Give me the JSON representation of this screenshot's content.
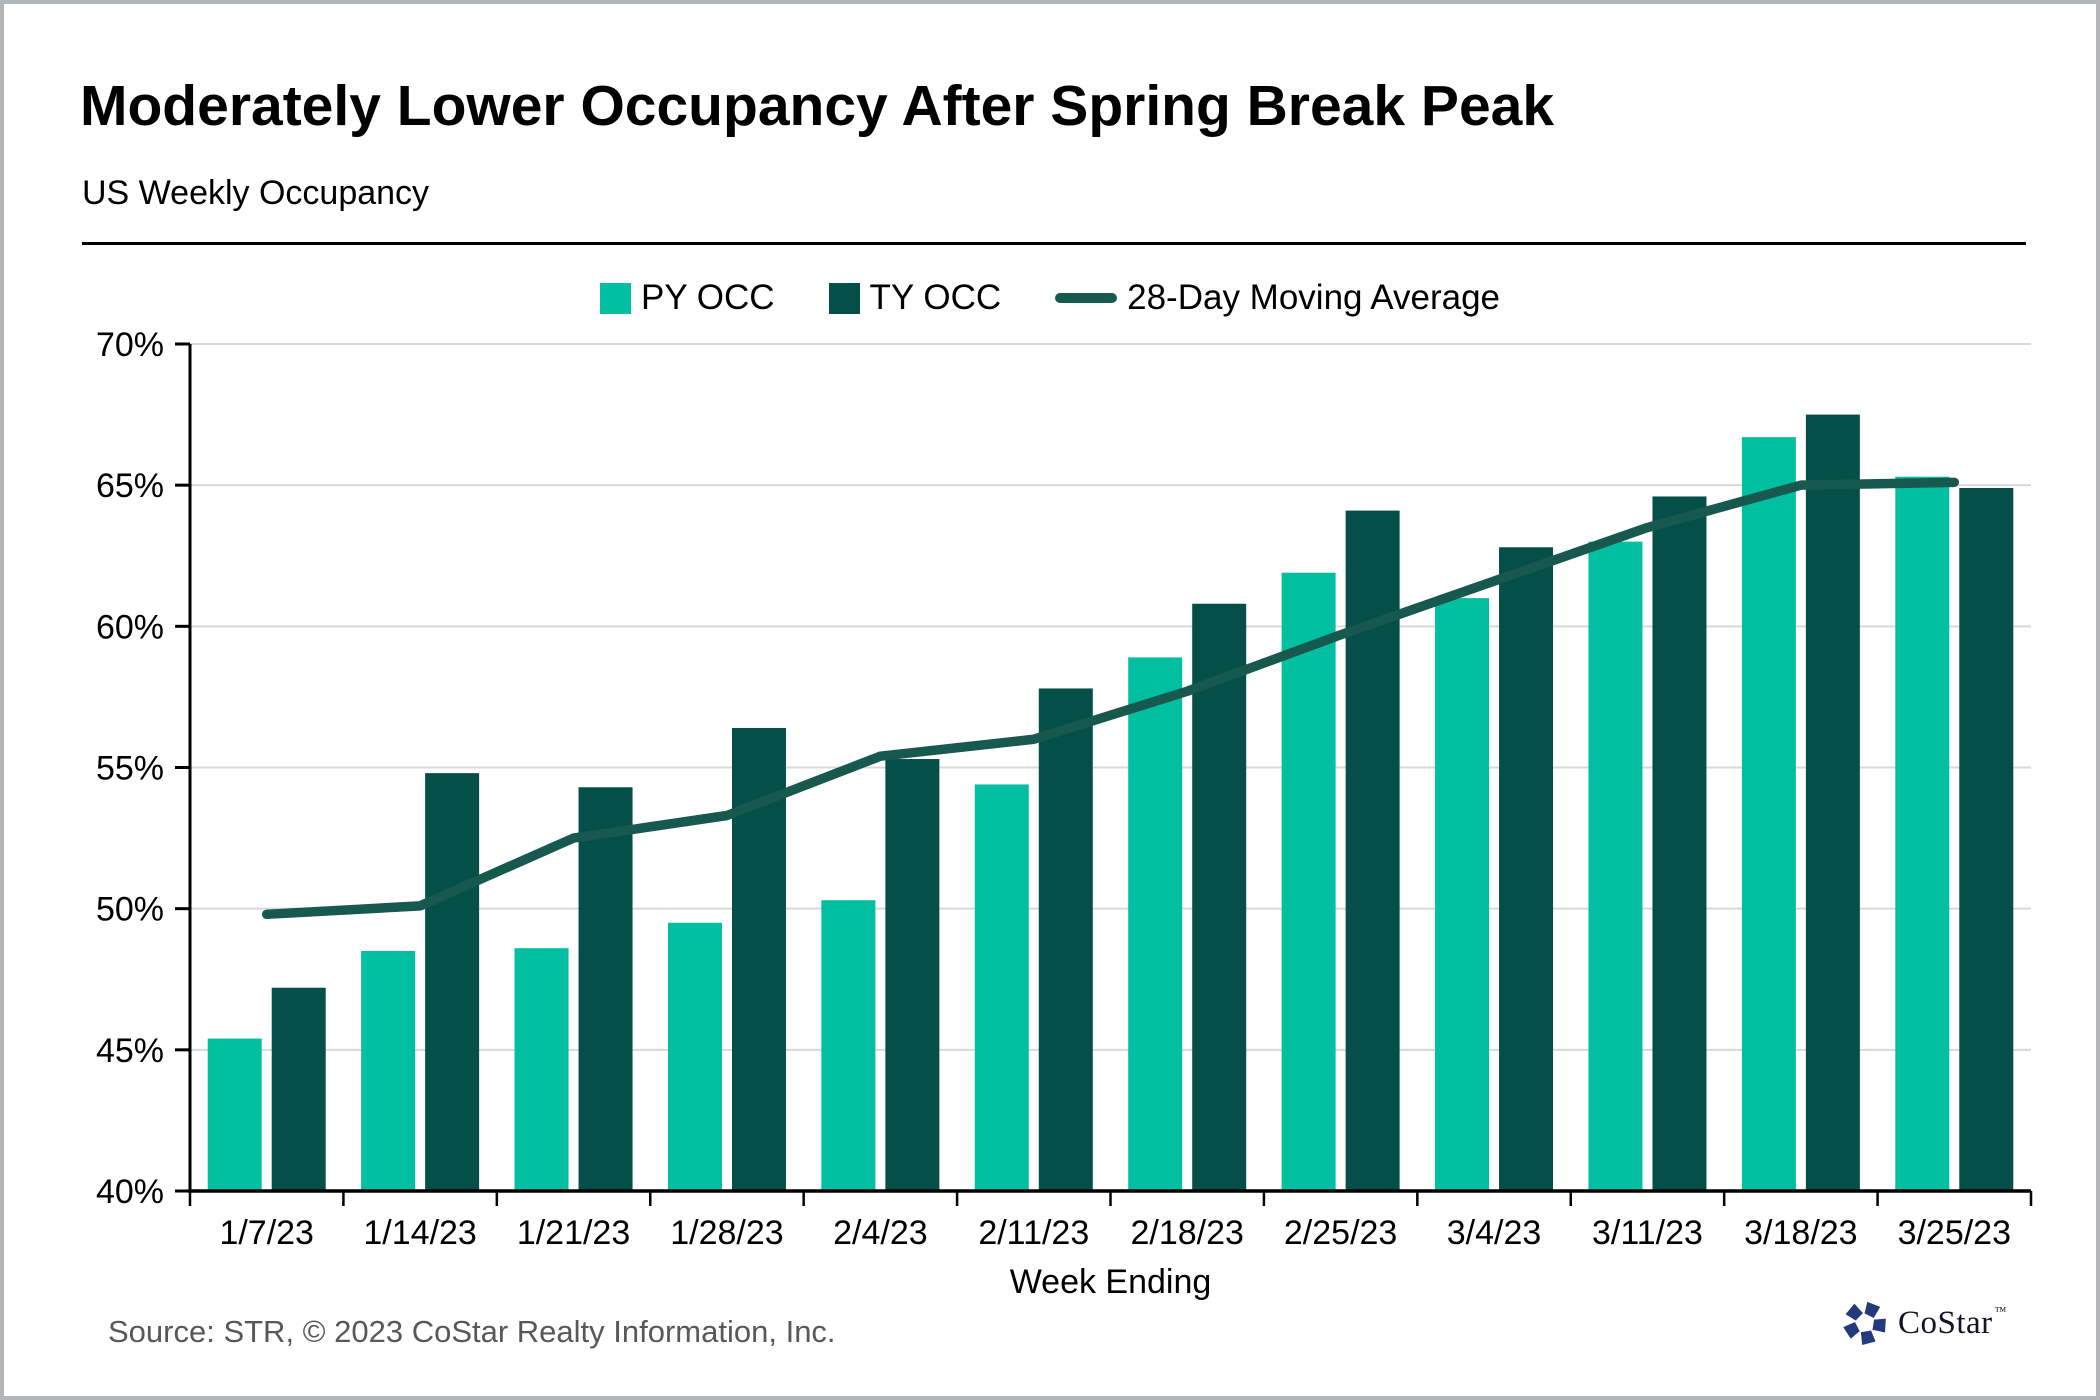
{
  "header": {
    "title": "Moderately Lower Occupancy After Spring Break Peak",
    "subtitle": "US Weekly Occupancy"
  },
  "legend": [
    {
      "label": "PY OCC",
      "type": "swatch",
      "color": "#03BFA1"
    },
    {
      "label": "TY OCC",
      "type": "swatch",
      "color": "#045048"
    },
    {
      "label": "28-Day Moving Average",
      "type": "line",
      "color": "#17584F"
    }
  ],
  "chart_data": {
    "type": "bar",
    "title": "US Weekly Occupancy",
    "xlabel": "Week Ending",
    "ylabel": "",
    "ylim": [
      40,
      70
    ],
    "yticks": [
      "40%",
      "45%",
      "50%",
      "55%",
      "60%",
      "65%",
      "70%"
    ],
    "ytick_values": [
      40,
      45,
      50,
      55,
      60,
      65,
      70
    ],
    "grid": "horizontal",
    "legend_position": "top",
    "categories": [
      "1/7/23",
      "1/14/23",
      "1/21/23",
      "1/28/23",
      "2/4/23",
      "2/11/23",
      "2/18/23",
      "2/25/23",
      "3/4/23",
      "3/11/23",
      "3/18/23",
      "3/25/23"
    ],
    "series": [
      {
        "name": "PY OCC",
        "type": "bar",
        "color": "#03BFA1",
        "values": [
          45.4,
          48.5,
          48.6,
          49.5,
          50.3,
          54.4,
          58.9,
          61.9,
          61.0,
          63.0,
          66.7,
          65.3
        ]
      },
      {
        "name": "TY OCC",
        "type": "bar",
        "color": "#045048",
        "values": [
          47.2,
          54.8,
          54.3,
          56.4,
          55.3,
          57.8,
          60.8,
          64.1,
          62.8,
          64.6,
          67.5,
          64.9
        ]
      },
      {
        "name": "28-Day Moving Average",
        "type": "line",
        "color": "#17584F",
        "values": [
          49.8,
          50.1,
          52.5,
          53.3,
          55.4,
          56.0,
          57.7,
          59.7,
          61.6,
          63.5,
          65.0,
          65.1
        ]
      }
    ],
    "colors": {
      "grid": "#D9D9D9",
      "axis": "#000000"
    }
  },
  "footer": {
    "source": "Source: STR, © 2023 CoStar Realty Information, Inc.",
    "logo_text": "CoStar",
    "logo_tm": "™",
    "logo_color": "#243A7C"
  }
}
